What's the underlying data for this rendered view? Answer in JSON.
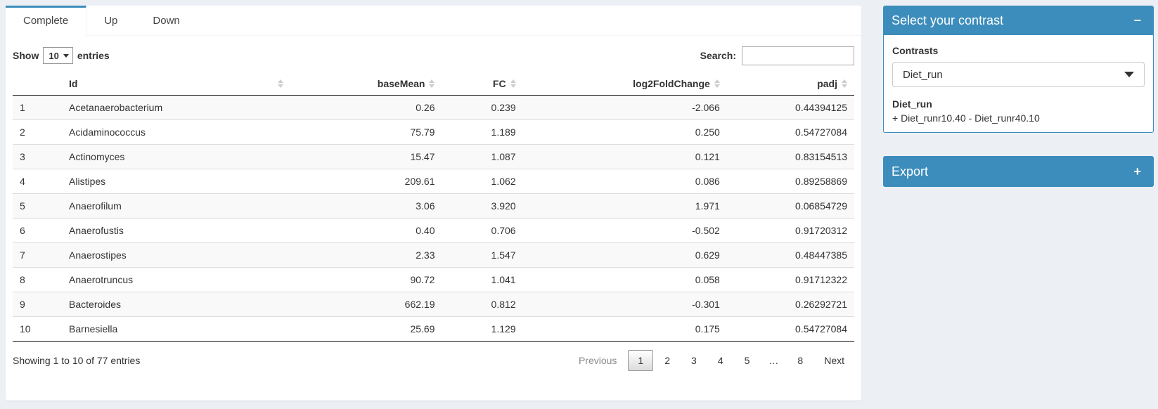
{
  "page": {
    "background_color": "#ecf0f5",
    "accent_color": "#3c8dbc"
  },
  "tabs": [
    {
      "label": "Complete",
      "active": true
    },
    {
      "label": "Up",
      "active": false
    },
    {
      "label": "Down",
      "active": false
    }
  ],
  "table_controls": {
    "show_label": "Show",
    "page_length": "10",
    "entries_label": "entries",
    "search_label": "Search:",
    "search_value": ""
  },
  "table": {
    "columns": [
      "",
      "Id",
      "baseMean",
      "FC",
      "log2FoldChange",
      "padj"
    ],
    "rows": [
      [
        "1",
        "Acetanaerobacterium",
        "0.26",
        "0.239",
        "-2.066",
        "0.44394125"
      ],
      [
        "2",
        "Acidaminococcus",
        "75.79",
        "1.189",
        "0.250",
        "0.54727084"
      ],
      [
        "3",
        "Actinomyces",
        "15.47",
        "1.087",
        "0.121",
        "0.83154513"
      ],
      [
        "4",
        "Alistipes",
        "209.61",
        "1.062",
        "0.086",
        "0.89258869"
      ],
      [
        "5",
        "Anaerofilum",
        "3.06",
        "3.920",
        "1.971",
        "0.06854729"
      ],
      [
        "6",
        "Anaerofustis",
        "0.40",
        "0.706",
        "-0.502",
        "0.91720312"
      ],
      [
        "7",
        "Anaerostipes",
        "2.33",
        "1.547",
        "0.629",
        "0.48447385"
      ],
      [
        "8",
        "Anaerotruncus",
        "90.72",
        "1.041",
        "0.058",
        "0.91712322"
      ],
      [
        "9",
        "Bacteroides",
        "662.19",
        "0.812",
        "-0.301",
        "0.26292721"
      ],
      [
        "10",
        "Barnesiella",
        "25.69",
        "1.129",
        "0.175",
        "0.54727084"
      ]
    ]
  },
  "table_footer": {
    "info": "Showing 1 to 10 of 77 entries",
    "pagination": [
      "Previous",
      "1",
      "2",
      "3",
      "4",
      "5",
      "…",
      "8",
      "Next"
    ],
    "active_page": "1",
    "disabled_items": [
      "Previous"
    ]
  },
  "sidebar": {
    "contrast_box": {
      "title": "Select your contrast",
      "collapse_icon": "−",
      "contrasts_label": "Contrasts",
      "selected_contrast": "Diet_run",
      "contrast_name": "Diet_run",
      "contrast_formula": "+ Diet_runr10.40 - Diet_runr40.10"
    },
    "export_box": {
      "title": "Export",
      "collapse_icon": "+"
    }
  }
}
